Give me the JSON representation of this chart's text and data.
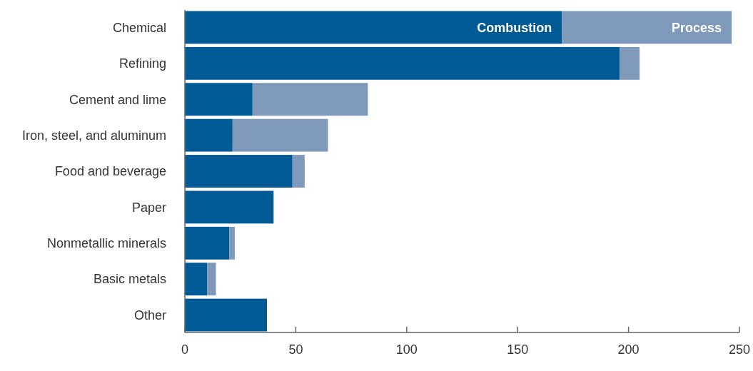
{
  "chart_data": {
    "type": "bar",
    "orientation": "horizontal",
    "stacked": true,
    "legend": false,
    "categories": [
      "Chemical",
      "Refining",
      "Cement and lime",
      "Iron, steel, and aluminum",
      "Food and beverage",
      "Paper",
      "Nonmetallic minerals",
      "Basic metals",
      "Other"
    ],
    "series": [
      {
        "name": "Combustion",
        "color": "#005a96",
        "values": [
          170,
          196,
          30.5,
          21.5,
          48.5,
          40,
          20,
          10,
          37
        ]
      },
      {
        "name": "Process",
        "color": "#7f99bb",
        "values": [
          76.5,
          9,
          52,
          43,
          5.5,
          0,
          2.5,
          4,
          0
        ]
      }
    ],
    "xlim": [
      0,
      250
    ],
    "xticks": [
      0,
      50,
      100,
      150,
      200,
      250
    ],
    "grid": false
  }
}
